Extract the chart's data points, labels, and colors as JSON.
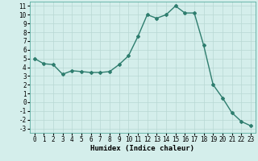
{
  "x": [
    0,
    1,
    2,
    3,
    4,
    5,
    6,
    7,
    8,
    9,
    10,
    11,
    12,
    13,
    14,
    15,
    16,
    17,
    18,
    19,
    20,
    21,
    22,
    23
  ],
  "y": [
    5.0,
    4.4,
    4.3,
    3.2,
    3.6,
    3.5,
    3.4,
    3.4,
    3.5,
    4.3,
    5.3,
    7.5,
    10.0,
    9.6,
    10.0,
    11.0,
    10.2,
    10.2,
    6.5,
    2.0,
    0.5,
    -1.2,
    -2.2,
    -2.7
  ],
  "line_color": "#2e7d6e",
  "marker": "D",
  "markersize": 2,
  "linewidth": 1.0,
  "bg_color": "#d4eeeb",
  "grid_color": "#b8d8d4",
  "xlabel": "Humidex (Indice chaleur)",
  "xlim": [
    -0.5,
    23.5
  ],
  "ylim": [
    -3.5,
    11.5
  ],
  "yticks": [
    -3,
    -2,
    -1,
    0,
    1,
    2,
    3,
    4,
    5,
    6,
    7,
    8,
    9,
    10,
    11
  ],
  "xticks": [
    0,
    1,
    2,
    3,
    4,
    5,
    6,
    7,
    8,
    9,
    10,
    11,
    12,
    13,
    14,
    15,
    16,
    17,
    18,
    19,
    20,
    21,
    22,
    23
  ],
  "tick_fontsize": 5.5,
  "xlabel_fontsize": 6.5
}
